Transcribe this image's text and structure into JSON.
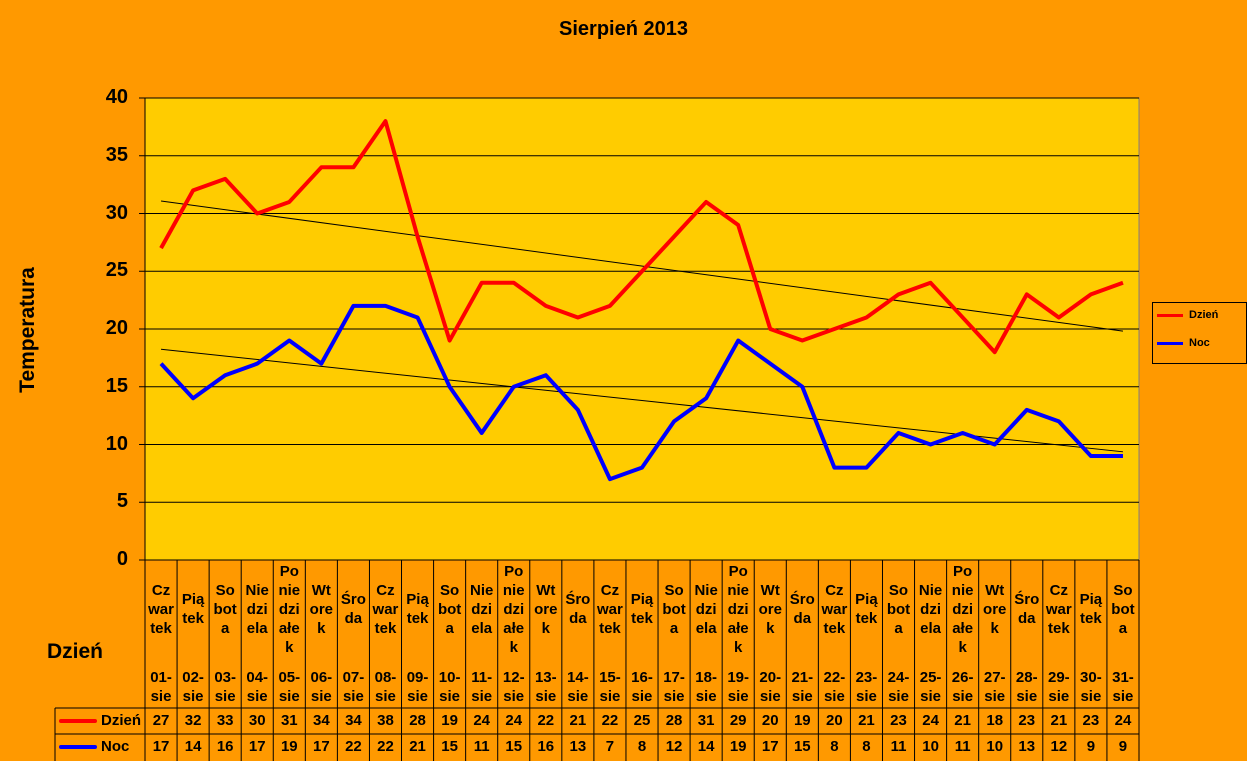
{
  "chart_data": {
    "type": "line",
    "title": "Sierpień 2013",
    "xlabel": "Dzień",
    "ylabel": "Temperatura",
    "ylim": [
      0,
      40
    ],
    "yticks": [
      "0",
      "5",
      "10",
      "15",
      "20",
      "25",
      "30",
      "35",
      "40"
    ],
    "grid": true,
    "legend_position": "right",
    "trendlines": true,
    "weekdays": [
      "Cz\nwar\ntek",
      "Pią\ntek",
      "So\nbot\na",
      "Nie\ndzi\nela",
      "Po\nnie\ndzi\nałe\nk",
      "Wt\nore\nk",
      "Śro\nda",
      "Cz\nwar\ntek",
      "Pią\ntek",
      "So\nbot\na",
      "Nie\ndzi\nela",
      "Po\nnie\ndzi\nałe\nk",
      "Wt\nore\nk",
      "Śro\nda",
      "Cz\nwar\ntek",
      "Pią\ntek",
      "So\nbot\na",
      "Nie\ndzi\nela",
      "Po\nnie\ndzi\nałe\nk",
      "Wt\nore\nk",
      "Śro\nda",
      "Cz\nwar\ntek",
      "Pią\ntek",
      "So\nbot\na",
      "Nie\ndzi\nela",
      "Po\nnie\ndzi\nałe\nk",
      "Wt\nore\nk",
      "Śro\nda",
      "Cz\nwar\ntek",
      "Pią\ntek",
      "So\nbot\na"
    ],
    "categories": [
      "01-\nsie",
      "02-\nsie",
      "03-\nsie",
      "04-\nsie",
      "05-\nsie",
      "06-\nsie",
      "07-\nsie",
      "08-\nsie",
      "09-\nsie",
      "10-\nsie",
      "11-\nsie",
      "12-\nsie",
      "13-\nsie",
      "14-\nsie",
      "15-\nsie",
      "16-\nsie",
      "17-\nsie",
      "18-\nsie",
      "19-\nsie",
      "20-\nsie",
      "21-\nsie",
      "22-\nsie",
      "23-\nsie",
      "24-\nsie",
      "25-\nsie",
      "26-\nsie",
      "27-\nsie",
      "28-\nsie",
      "29-\nsie",
      "30-\nsie",
      "31-\nsie"
    ],
    "series": [
      {
        "name": "Dzień",
        "color": "#FF0000",
        "values": [
          27,
          32,
          33,
          30,
          31,
          34,
          34,
          38,
          28,
          19,
          24,
          24,
          22,
          21,
          22,
          25,
          28,
          31,
          29,
          20,
          19,
          20,
          21,
          23,
          24,
          21,
          18,
          23,
          21,
          23,
          24
        ]
      },
      {
        "name": "Noc",
        "color": "#0000FF",
        "values": [
          17,
          14,
          16,
          17,
          19,
          17,
          22,
          22,
          21,
          15,
          11,
          15,
          16,
          13,
          7,
          8,
          12,
          14,
          19,
          17,
          15,
          8,
          8,
          11,
          10,
          11,
          10,
          13,
          12,
          9,
          9
        ]
      }
    ]
  }
}
